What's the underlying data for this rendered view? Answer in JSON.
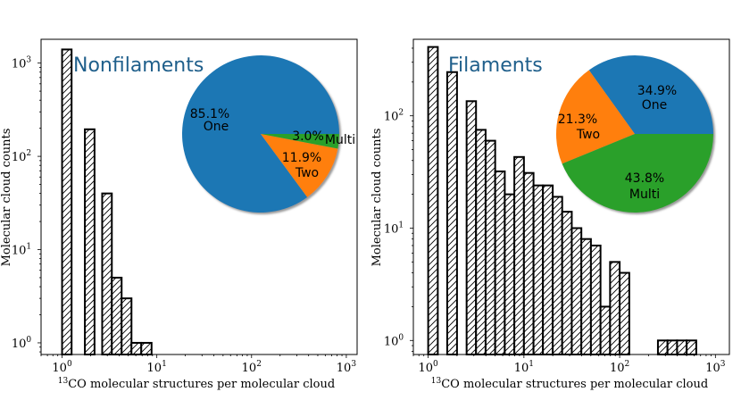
{
  "colors": {
    "title": "#1f5f8b",
    "one": "#1f77b4",
    "two": "#ff7f0e",
    "multi": "#2ca02c",
    "bar_edge": "#000000"
  },
  "chart_data": [
    {
      "type": "bar",
      "id": "left",
      "title": "Nonfilaments",
      "xscale": "log",
      "yscale": "log",
      "xlim": [
        0.6,
        1300
      ],
      "ylim": [
        0.75,
        1800
      ],
      "xlabel_sup": "13",
      "xlabel": "CO molecular structures per molecular cloud",
      "ylabel": "Molecular cloud counts",
      "xticks": [
        {
          "value": 1,
          "base": "10",
          "exp": "0"
        },
        {
          "value": 10,
          "base": "10",
          "exp": "1"
        },
        {
          "value": 100,
          "base": "10",
          "exp": "2"
        },
        {
          "value": 1000,
          "base": "10",
          "exp": "3"
        }
      ],
      "yticks": [
        {
          "value": 1,
          "base": "10",
          "exp": "0"
        },
        {
          "value": 10,
          "base": "10",
          "exp": "1"
        },
        {
          "value": 100,
          "base": "10",
          "exp": "2"
        },
        {
          "value": 1000,
          "base": "10",
          "exp": "3"
        }
      ],
      "bins": [
        {
          "x0": 1.0,
          "x1": 1.26,
          "count": 1400
        },
        {
          "x0": 1.74,
          "x1": 2.2,
          "count": 195
        },
        {
          "x0": 2.65,
          "x1": 3.35,
          "count": 40
        },
        {
          "x0": 3.35,
          "x1": 4.25,
          "count": 5
        },
        {
          "x0": 4.25,
          "x1": 5.4,
          "count": 3
        },
        {
          "x0": 5.4,
          "x1": 6.85,
          "count": 1
        },
        {
          "x0": 6.85,
          "x1": 8.8,
          "count": 1
        }
      ],
      "pie": {
        "slices": [
          {
            "name": "One",
            "percent_label": "85.1%",
            "value": 85.1
          },
          {
            "name": "Two",
            "percent_label": "11.9%",
            "value": 11.9
          },
          {
            "name": "Multi",
            "percent_label": "3.0%",
            "value": 3.0
          }
        ]
      }
    },
    {
      "type": "bar",
      "id": "right",
      "title": "Filaments",
      "xscale": "log",
      "yscale": "log",
      "xlim": [
        0.7,
        1400
      ],
      "ylim": [
        0.75,
        480
      ],
      "xlabel_sup": "13",
      "xlabel": "CO molecular structures per molecular cloud",
      "ylabel": "Molecular cloud counts",
      "xticks": [
        {
          "value": 1,
          "base": "10",
          "exp": "0"
        },
        {
          "value": 10,
          "base": "10",
          "exp": "1"
        },
        {
          "value": 100,
          "base": "10",
          "exp": "2"
        },
        {
          "value": 1000,
          "base": "10",
          "exp": "3"
        }
      ],
      "yticks": [
        {
          "value": 1,
          "base": "10",
          "exp": "0"
        },
        {
          "value": 10,
          "base": "10",
          "exp": "1"
        },
        {
          "value": 100,
          "base": "10",
          "exp": "2"
        }
      ],
      "bins": [
        {
          "x0": 1.0,
          "x1": 1.26,
          "count": 410
        },
        {
          "x0": 1.58,
          "x1": 2.0,
          "count": 245
        },
        {
          "x0": 2.0,
          "x1": 2.52,
          "count": 0
        },
        {
          "x0": 2.52,
          "x1": 3.16,
          "count": 135
        },
        {
          "x0": 3.16,
          "x1": 3.98,
          "count": 75
        },
        {
          "x0": 3.98,
          "x1": 5.01,
          "count": 60
        },
        {
          "x0": 5.01,
          "x1": 6.31,
          "count": 32
        },
        {
          "x0": 6.31,
          "x1": 7.94,
          "count": 20
        },
        {
          "x0": 7.94,
          "x1": 10.0,
          "count": 43
        },
        {
          "x0": 10.0,
          "x1": 12.6,
          "count": 31
        },
        {
          "x0": 12.6,
          "x1": 15.8,
          "count": 24
        },
        {
          "x0": 15.8,
          "x1": 20.0,
          "count": 24
        },
        {
          "x0": 20.0,
          "x1": 25.1,
          "count": 19
        },
        {
          "x0": 25.1,
          "x1": 31.6,
          "count": 14
        },
        {
          "x0": 31.6,
          "x1": 39.8,
          "count": 10
        },
        {
          "x0": 39.8,
          "x1": 50.1,
          "count": 8
        },
        {
          "x0": 50.1,
          "x1": 63.1,
          "count": 7
        },
        {
          "x0": 63.1,
          "x1": 79.4,
          "count": 2
        },
        {
          "x0": 79.4,
          "x1": 100.0,
          "count": 5
        },
        {
          "x0": 100.0,
          "x1": 126.0,
          "count": 4
        },
        {
          "x0": 251.0,
          "x1": 316.0,
          "count": 1
        },
        {
          "x0": 316.0,
          "x1": 398.0,
          "count": 1
        },
        {
          "x0": 398.0,
          "x1": 501.0,
          "count": 1
        },
        {
          "x0": 501.0,
          "x1": 631.0,
          "count": 1
        }
      ],
      "pie": {
        "slices": [
          {
            "name": "One",
            "percent_label": "34.9%",
            "value": 34.9
          },
          {
            "name": "Two",
            "percent_label": "21.3%",
            "value": 21.3
          },
          {
            "name": "Multi",
            "percent_label": "43.8%",
            "value": 43.8
          }
        ]
      }
    }
  ]
}
